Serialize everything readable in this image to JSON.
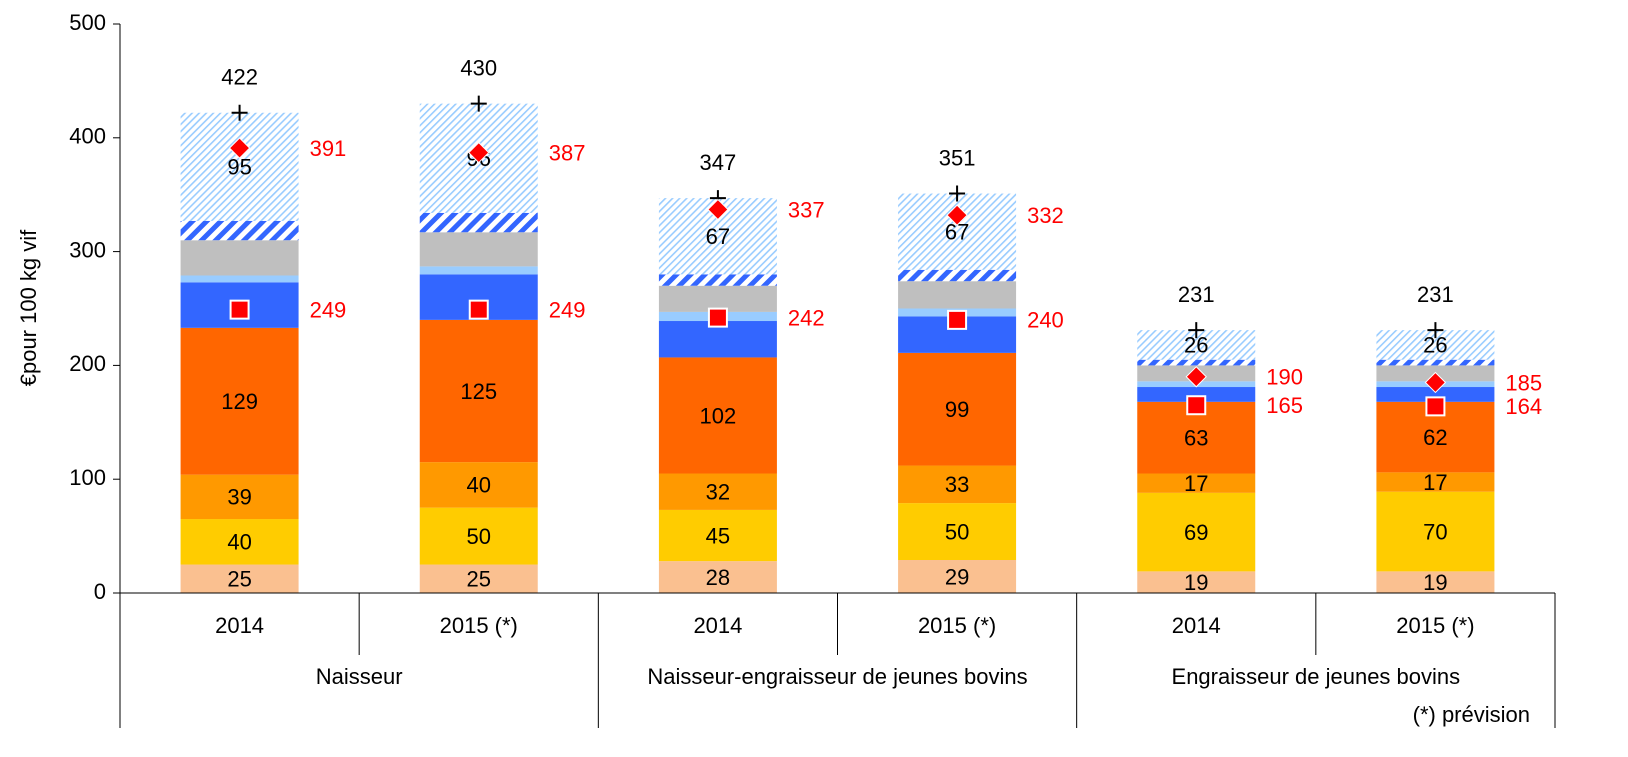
{
  "chart_data": {
    "type": "bar",
    "stacked": true,
    "ylabel": "€pour 100 kg vif",
    "ylim": [
      0,
      500
    ],
    "yticks": [
      0,
      100,
      200,
      300,
      400,
      500
    ],
    "grid": false,
    "categories": [
      "2014",
      "2015 (*)",
      "2014",
      "2015 (*)",
      "2014",
      "2015 (*)"
    ],
    "groups": [
      "Naisseur",
      "Naisseur-engraisseur de jeunes bovins",
      "Engraisseur de jeunes bovins"
    ],
    "footnote": "(*) prévision",
    "series": [
      {
        "color": "#fac090",
        "values": [
          25,
          25,
          28,
          29,
          19,
          19
        ],
        "labels": true
      },
      {
        "color": "#ffcc00",
        "values": [
          40,
          50,
          45,
          50,
          69,
          70
        ],
        "labels": true
      },
      {
        "color": "#ff9900",
        "values": [
          39,
          40,
          32,
          33,
          17,
          17
        ],
        "labels": true
      },
      {
        "color": "#ff6600",
        "values": [
          129,
          125,
          102,
          99,
          63,
          62
        ],
        "labels": true
      },
      {
        "color": "#3366ff",
        "values": [
          40,
          40,
          32,
          32,
          13,
          13
        ],
        "labels": false
      },
      {
        "color": "#99ccff",
        "values": [
          6,
          7,
          8,
          7,
          5,
          5
        ],
        "labels": false
      },
      {
        "color": "#bfbfbf",
        "values": [
          31,
          30,
          23,
          24,
          14,
          14
        ],
        "labels": false
      },
      {
        "color": "#3366ff",
        "pattern": "dense-hatch",
        "values": [
          17,
          17,
          10,
          10,
          5,
          5
        ],
        "labels": false
      },
      {
        "color": "#99ccff",
        "pattern": "light-hatch",
        "values": [
          95,
          96,
          67,
          67,
          26,
          26
        ],
        "labels": true
      }
    ],
    "totals": {
      "shape": "plus",
      "color": "#000000",
      "values": [
        422,
        430,
        347,
        351,
        231,
        231
      ]
    },
    "markers": [
      {
        "shape": "diamond",
        "color": "#ff0000",
        "values": [
          391,
          387,
          337,
          332,
          190,
          185
        ]
      },
      {
        "shape": "square",
        "color": "#ff0000",
        "values": [
          249,
          249,
          242,
          240,
          165,
          164
        ]
      }
    ]
  }
}
